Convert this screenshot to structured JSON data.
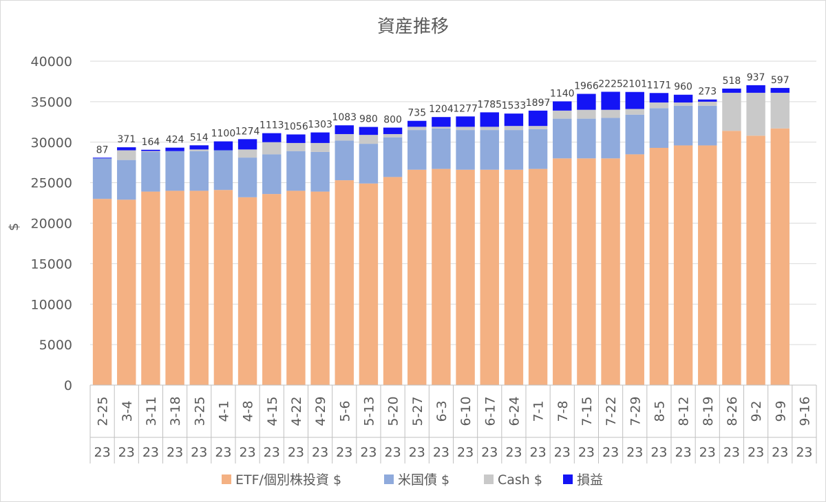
{
  "chart_data": {
    "type": "bar",
    "stacked": true,
    "title": "資産推移",
    "xlabel": "",
    "ylabel": "$",
    "ylim": [
      0,
      40000
    ],
    "yticks": [
      0,
      5000,
      10000,
      15000,
      20000,
      25000,
      30000,
      35000,
      40000
    ],
    "grid": true,
    "legend_position": "bottom",
    "categories": [
      "2-25",
      "3-4",
      "3-11",
      "3-18",
      "3-25",
      "4-1",
      "4-8",
      "4-15",
      "4-22",
      "4-29",
      "5-6",
      "5-13",
      "5-20",
      "5-27",
      "6-3",
      "6-10",
      "6-17",
      "6-24",
      "7-1",
      "7-8",
      "7-15",
      "7-22",
      "7-29",
      "8-5",
      "8-12",
      "8-19",
      "8-26",
      "9-2",
      "9-9",
      "9-16"
    ],
    "year_labels": [
      "23",
      "23",
      "23",
      "23",
      "23",
      "23",
      "23",
      "23",
      "23",
      "23",
      "23",
      "23",
      "23",
      "23",
      "23",
      "23",
      "23",
      "23",
      "23",
      "23",
      "23",
      "23",
      "23",
      "23",
      "23",
      "23",
      "23",
      "23",
      "23",
      "23"
    ],
    "series": [
      {
        "name": "ETF/個別株投資 $",
        "color": "#F4B183",
        "values": [
          23000,
          22900,
          23900,
          24000,
          24000,
          24100,
          23200,
          23600,
          24000,
          23900,
          25300,
          24900,
          25700,
          26600,
          26700,
          26600,
          26600,
          26600,
          26700,
          28000,
          28000,
          28000,
          28500,
          29300,
          29600,
          29600,
          31400,
          30800,
          31700,
          null
        ]
      },
      {
        "name": "米国債 $",
        "color": "#8FAADC",
        "values": [
          5000,
          4900,
          4900,
          4900,
          4900,
          4900,
          4900,
          4900,
          4900,
          4900,
          4900,
          4900,
          4900,
          4900,
          5000,
          4900,
          4900,
          4900,
          4900,
          4900,
          4900,
          5000,
          4900,
          4900,
          4900,
          4900,
          0,
          0,
          0,
          null
        ]
      },
      {
        "name": "Cash $",
        "color": "#C9C9C9",
        "values": [
          0,
          1200,
          100,
          0,
          200,
          0,
          1000,
          1500,
          1000,
          1100,
          800,
          1100,
          400,
          400,
          200,
          400,
          400,
          500,
          400,
          1000,
          1100,
          1000,
          700,
          700,
          400,
          500,
          4700,
          5300,
          4400,
          null
        ]
      },
      {
        "name": "損益",
        "color": "#1414F5",
        "values": [
          87,
          371,
          164,
          424,
          514,
          1100,
          1274,
          1113,
          1056,
          1303,
          1083,
          980,
          800,
          735,
          1204,
          1277,
          1785,
          1533,
          1897,
          1140,
          1966,
          2225,
          2101,
          1171,
          960,
          273,
          518,
          937,
          597,
          null
        ]
      }
    ],
    "data_labels": [
      "87",
      "371",
      "164",
      "424",
      "514",
      "1100",
      "1274",
      "1113",
      "1056",
      "1303",
      "1083",
      "980",
      "800",
      "735",
      "1204",
      "1277",
      "1785",
      "1533",
      "1897",
      "1140",
      "1966",
      "2225",
      "2101",
      "1171",
      "960",
      "273",
      "518",
      "937",
      "597",
      ""
    ]
  }
}
